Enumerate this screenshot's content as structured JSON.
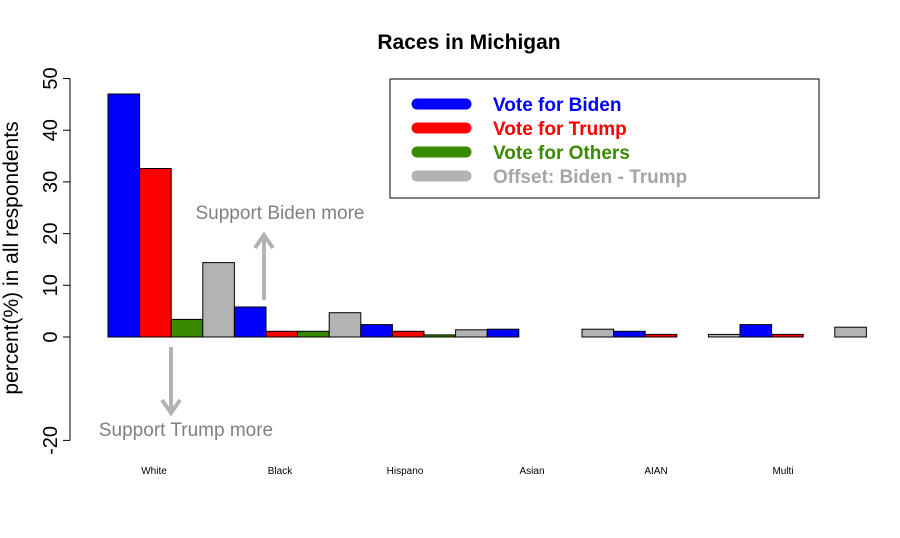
{
  "chart_data": {
    "type": "bar",
    "title": "Races in Michigan",
    "ylabel": "percent(%) in all respondents",
    "xlabel": "",
    "ylim": [
      -20,
      50
    ],
    "yticks": [
      -20,
      0,
      10,
      20,
      30,
      40,
      50
    ],
    "categories": [
      "White",
      "Black",
      "Hispano",
      "Asian",
      "AIAN",
      "Multi"
    ],
    "series": [
      {
        "name": "Vote for Biden",
        "color": "#0000ff",
        "values": [
          47.0,
          5.8,
          2.4,
          1.5,
          1.1,
          2.4
        ]
      },
      {
        "name": "Vote for Trump",
        "color": "#ff0000",
        "values": [
          32.6,
          1.1,
          1.1,
          0.0,
          0.5,
          0.5
        ]
      },
      {
        "name": "Vote for Others",
        "color": "#3a8a00",
        "values": [
          3.4,
          1.1,
          0.4,
          0.0,
          0.0,
          0.0
        ]
      },
      {
        "name": "Offset: Biden - Trump",
        "color": "#b3b3b3",
        "values": [
          14.4,
          4.7,
          1.4,
          1.5,
          0.5,
          1.9
        ]
      }
    ],
    "legend_position": "top-right",
    "grid": false,
    "annotations": [
      {
        "text": "Support Biden more",
        "arrow": "up"
      },
      {
        "text": "Support Trump more",
        "arrow": "down"
      }
    ]
  }
}
